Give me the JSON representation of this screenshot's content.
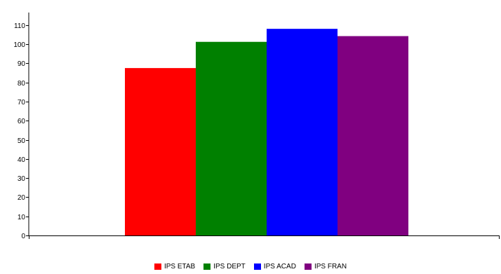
{
  "chart_data": {
    "type": "bar",
    "categories": [
      "IPS ETAB",
      "IPS DEPT",
      "IPS ACAD",
      "IPS FRAN"
    ],
    "values": [
      87.5,
      101.2,
      108,
      104.2
    ],
    "colors": [
      "#ff0000",
      "#008000",
      "#0000ff",
      "#800080"
    ],
    "yticks": [
      0,
      10,
      20,
      30,
      40,
      50,
      60,
      70,
      80,
      90,
      100,
      110
    ],
    "ylim": [
      0,
      118
    ],
    "title": "",
    "xlabel": "",
    "ylabel": "",
    "legend_position": "bottom",
    "grid": false
  }
}
